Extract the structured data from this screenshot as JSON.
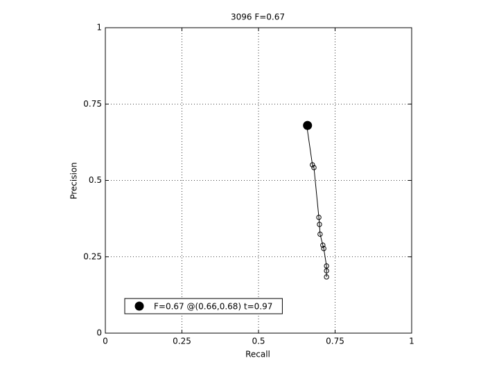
{
  "chart_data": {
    "type": "line",
    "title": "3096 F=0.67",
    "x_label": "Recall",
    "y_label": "Precision",
    "xlim": [
      0,
      1
    ],
    "ylim": [
      0,
      1
    ],
    "xticks": [
      0,
      0.25,
      0.5,
      0.75,
      1
    ],
    "yticks": [
      0,
      0.25,
      0.5,
      0.75,
      1
    ],
    "grid": true,
    "legend": "lower left",
    "series": [
      {
        "color": "#000000",
        "marker": "open-circle",
        "x": [
          0.658,
          0.676,
          0.681,
          0.697,
          0.699,
          0.701,
          0.71,
          0.713,
          0.722,
          0.722,
          0.722
        ],
        "values": [
          0.676,
          0.551,
          0.542,
          0.379,
          0.356,
          0.324,
          0.288,
          0.277,
          0.22,
          0.204,
          0.184
        ]
      },
      {
        "name": "F=0.67 @(0.66,0.68) t=0.97",
        "color": "#000000",
        "marker": "filled-circle",
        "x": [
          0.66
        ],
        "values": [
          0.68
        ]
      }
    ]
  }
}
